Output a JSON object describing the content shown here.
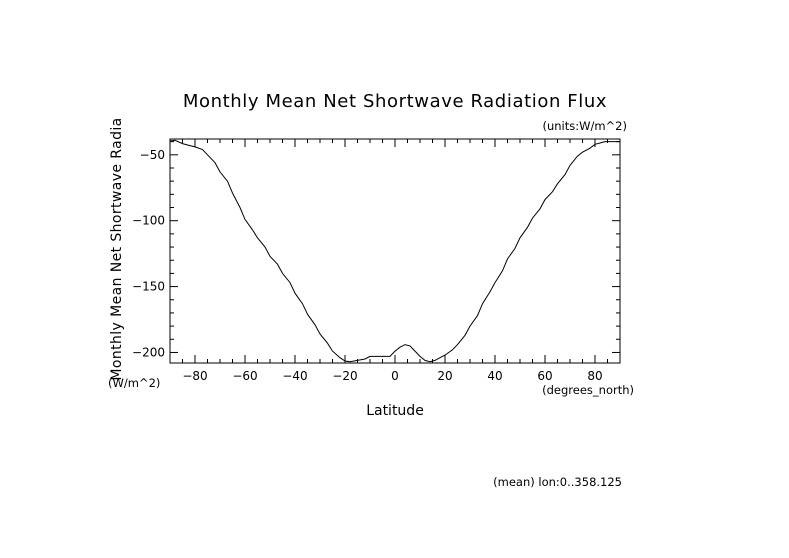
{
  "chart_data": {
    "type": "line",
    "title": "Monthly Mean Net Shortwave Radiation Flux",
    "units_note": "(units:W/m^2)",
    "xlabel": "Latitude",
    "xunits": "(degrees_north)",
    "ylabel": "Monthly Mean Net Shortwave Radia",
    "yunits": "(W/m^2)",
    "footer": "(mean) lon:0..358.125",
    "xlim": [
      -90,
      90
    ],
    "ylim": [
      -208,
      -38
    ],
    "xticks": [
      -80,
      -60,
      -40,
      -20,
      0,
      20,
      40,
      60,
      80
    ],
    "xtick_labels": [
      "−80",
      "−60",
      "−40",
      "−20",
      "0",
      "20",
      "40",
      "60",
      "80"
    ],
    "yticks": [
      -50,
      -100,
      -150,
      -200
    ],
    "ytick_labels": [
      "−50",
      "−100",
      "−150",
      "−200"
    ],
    "grid": false,
    "series": [
      {
        "x": [
          -90,
          -88,
          -85,
          -82,
          -80,
          -77,
          -75,
          -72,
          -70,
          -67,
          -65,
          -62,
          -60,
          -57,
          -55,
          -52,
          -50,
          -47,
          -45,
          -42,
          -40,
          -37,
          -35,
          -32,
          -30,
          -27,
          -25,
          -22,
          -20,
          -18,
          -15,
          -12,
          -10,
          -8,
          -5,
          -2,
          0,
          2,
          4,
          6,
          8,
          10,
          12,
          14,
          16,
          18,
          20,
          23,
          25,
          28,
          30,
          33,
          35,
          38,
          40,
          43,
          45,
          48,
          50,
          53,
          55,
          58,
          60,
          63,
          65,
          68,
          70,
          73,
          75,
          78,
          80,
          82,
          84,
          86,
          88,
          90
        ],
        "y": [
          -39.5,
          -39,
          -41.5,
          -43,
          -44,
          -46,
          -50,
          -56,
          -63,
          -70,
          -79,
          -90,
          -99,
          -107,
          -113,
          -120,
          -127,
          -133,
          -140,
          -147,
          -155,
          -163,
          -171,
          -179,
          -186,
          -193,
          -199,
          -204,
          -206.5,
          -207,
          -206,
          -205,
          -203,
          -203,
          -203,
          -203,
          -199,
          -196,
          -194,
          -195,
          -199,
          -203,
          -206,
          -207,
          -206,
          -204,
          -202,
          -198,
          -194,
          -187,
          -180,
          -172,
          -163,
          -154,
          -147,
          -138,
          -129,
          -121,
          -113,
          -105,
          -98,
          -91,
          -84,
          -78,
          -72,
          -65,
          -58,
          -51,
          -48,
          -45,
          -42,
          -41,
          -40,
          -40,
          -40,
          -40
        ]
      }
    ]
  }
}
